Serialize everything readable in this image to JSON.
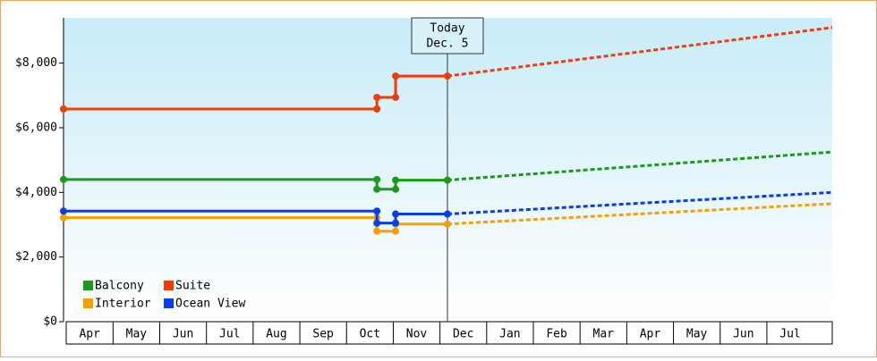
{
  "chart_data": {
    "type": "step-line",
    "categories": [
      "Apr",
      "May",
      "Jun",
      "Jul",
      "Aug",
      "Sep",
      "Oct",
      "Nov",
      "Dec",
      "Jan",
      "Feb",
      "Mar",
      "Apr",
      "May",
      "Jun",
      "Jul"
    ],
    "xlim": [
      -0.06,
      16.4
    ],
    "ylim": [
      0,
      9400
    ],
    "yticks": [
      {
        "value": 0,
        "label": "$0"
      },
      {
        "value": 2000,
        "label": "$2,000"
      },
      {
        "value": 4000,
        "label": "$4,000"
      },
      {
        "value": 6000,
        "label": "$6,000"
      },
      {
        "value": 8000,
        "label": "$8,000"
      }
    ],
    "annotation": {
      "line1": "Today",
      "line2": "Dec. 5",
      "x": 8.16
    },
    "series": [
      {
        "name": "Balcony",
        "color": "#1a9a1a",
        "x": [
          -0.06,
          6.65,
          6.65,
          7.05,
          7.05,
          8.16
        ],
        "values": [
          4400,
          4400,
          4100,
          4100,
          4380,
          4380
        ],
        "forecast_x": [
          8.16,
          16.4
        ],
        "forecast_values": [
          4380,
          5250
        ]
      },
      {
        "name": "Suite",
        "color": "#f03c0a",
        "x": [
          -0.06,
          6.65,
          6.65,
          7.05,
          7.05,
          8.16
        ],
        "values": [
          6580,
          6580,
          6940,
          6940,
          7600,
          7600
        ],
        "forecast_x": [
          8.16,
          16.4
        ],
        "forecast_values": [
          7600,
          9100
        ]
      },
      {
        "name": "Interior",
        "color": "#f5a000",
        "x": [
          -0.06,
          6.65,
          6.65,
          7.05,
          7.05,
          8.16
        ],
        "values": [
          3220,
          3220,
          2800,
          2800,
          3020,
          3020
        ],
        "forecast_x": [
          8.16,
          16.4
        ],
        "forecast_values": [
          3020,
          3650
        ]
      },
      {
        "name": "Ocean View",
        "color": "#0a3cf0",
        "x": [
          -0.06,
          6.65,
          6.65,
          7.05,
          7.05,
          8.16
        ],
        "values": [
          3420,
          3420,
          3050,
          3050,
          3330,
          3330
        ],
        "forecast_x": [
          8.16,
          16.4
        ],
        "forecast_values": [
          3330,
          4000
        ]
      }
    ]
  }
}
